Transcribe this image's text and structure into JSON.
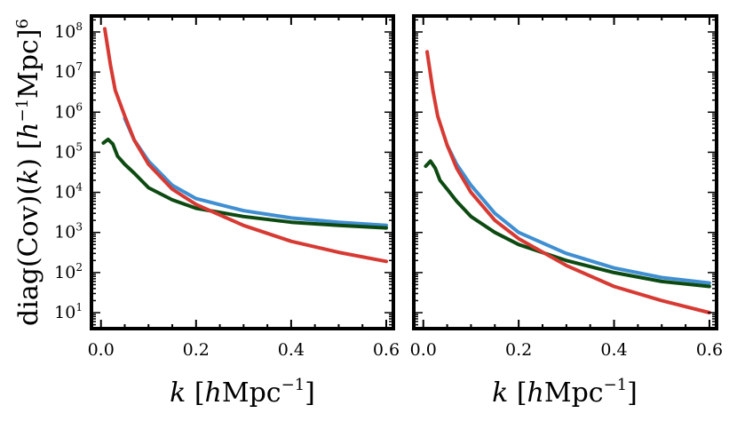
{
  "chart_data": {
    "type": "line",
    "y_scale": "log",
    "ylim": [
      4,
      250000000
    ],
    "xlim": [
      -0.02,
      0.615
    ],
    "ylabel": {
      "prefix": "diag(Cov)(",
      "var": "k",
      "suffix": ") [",
      "unit_var": "h",
      "unit_exp": "−1",
      "unit_rest": "Mpc]",
      "power": "6"
    },
    "xlabel": {
      "var": "k",
      "open": " [",
      "unit_var": "h",
      "unit_rest": "Mpc",
      "exp": "−1",
      "close": "]"
    },
    "x_ticks": [
      0.0,
      0.2,
      0.4,
      0.6
    ],
    "x_tick_labels": [
      "0.0",
      "0.2",
      "0.4",
      "0.6"
    ],
    "y_ticks": [
      10,
      100,
      1000,
      10000,
      100000,
      1000000,
      10000000,
      100000000
    ],
    "y_tick_base": "10",
    "y_tick_exps": [
      "1",
      "2",
      "3",
      "4",
      "5",
      "6",
      "7",
      "8"
    ],
    "panels": [
      {
        "name": "left",
        "series": [
          {
            "name": "red",
            "color": "#d73a33",
            "x": [
              0.008,
              0.02,
              0.03,
              0.05,
              0.07,
              0.1,
              0.15,
              0.2,
              0.3,
              0.4,
              0.5,
              0.6
            ],
            "y": [
              120000000,
              15000000,
              3500000,
              800000,
              200000,
              50000,
              12000,
              5000,
              1500,
              600,
              320,
              190
            ]
          },
          {
            "name": "blue",
            "color": "#3f8fd2",
            "x": [
              0.05,
              0.07,
              0.1,
              0.15,
              0.2,
              0.3,
              0.4,
              0.5,
              0.6
            ],
            "y": [
              700000,
              200000,
              60000,
              15000,
              7000,
              3500,
              2300,
              1800,
              1500
            ]
          },
          {
            "name": "green",
            "color": "#0d4a12",
            "x": [
              0.005,
              0.015,
              0.025,
              0.035,
              0.05,
              0.07,
              0.1,
              0.15,
              0.2,
              0.3,
              0.4,
              0.5,
              0.6
            ],
            "y": [
              170000,
              210000,
              160000,
              80000,
              50000,
              30000,
              13000,
              6500,
              4000,
              2500,
              1800,
              1500,
              1300
            ]
          }
        ]
      },
      {
        "name": "right",
        "series": [
          {
            "name": "red",
            "color": "#d73a33",
            "x": [
              0.008,
              0.02,
              0.03,
              0.05,
              0.07,
              0.1,
              0.15,
              0.2,
              0.3,
              0.4,
              0.5,
              0.6
            ],
            "y": [
              32000000,
              3500000,
              800000,
              150000,
              40000,
              10000,
              2000,
              700,
              150,
              45,
              20,
              10
            ]
          },
          {
            "name": "blue",
            "color": "#3f8fd2",
            "x": [
              0.05,
              0.07,
              0.1,
              0.15,
              0.2,
              0.3,
              0.4,
              0.5,
              0.6
            ],
            "y": [
              150000,
              50000,
              15000,
              3000,
              1000,
              300,
              130,
              75,
              55
            ]
          },
          {
            "name": "green",
            "color": "#0d4a12",
            "x": [
              0.005,
              0.015,
              0.025,
              0.035,
              0.05,
              0.07,
              0.1,
              0.15,
              0.2,
              0.3,
              0.4,
              0.5,
              0.6
            ],
            "y": [
              45000,
              60000,
              40000,
              20000,
              12000,
              6000,
              2500,
              1000,
              500,
              200,
              100,
              60,
              45
            ]
          }
        ]
      }
    ]
  }
}
